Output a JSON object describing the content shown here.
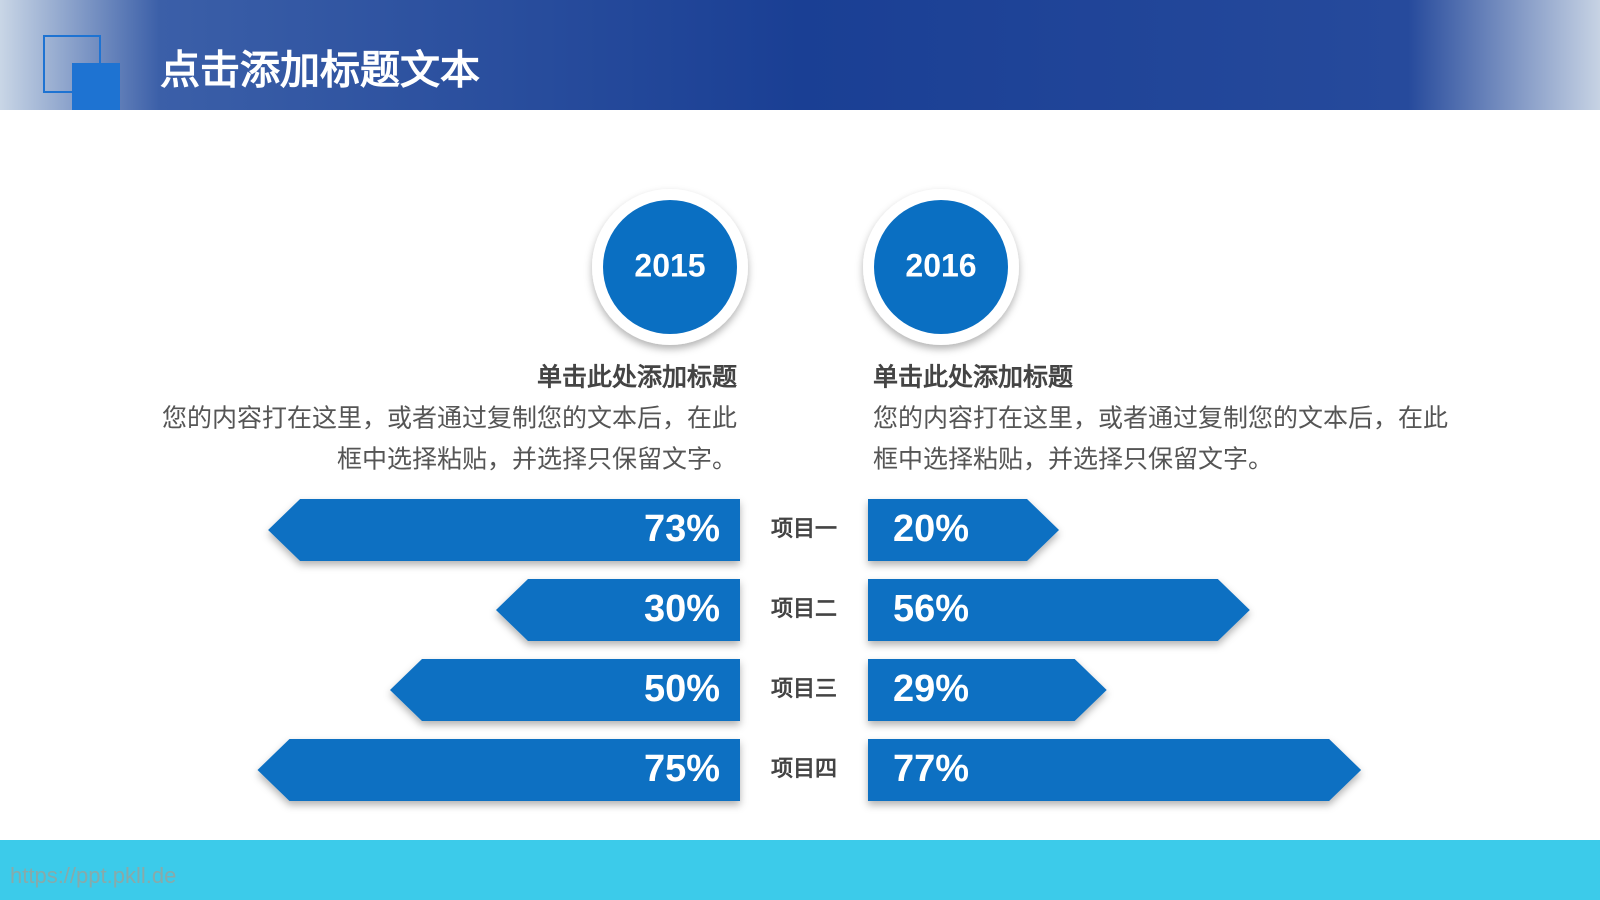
{
  "header": {
    "title": "点击添加标题文本"
  },
  "columns": [
    {
      "heading": "单击此处添加标题",
      "text_lines": [
        "您的内容打在这里，或者通过复制您的文本后，在此",
        "框中选择粘贴，并选择只保留文字。"
      ]
    },
    {
      "heading": "单击此处添加标题",
      "text_lines": [
        "您的内容打在这里，或者通过复制您的文本后，在此",
        "框中选择粘贴，并选择只保留文字。"
      ]
    }
  ],
  "chart_data": {
    "type": "bar",
    "categories": [
      "项目一",
      "项目二",
      "项目三",
      "项目四"
    ],
    "series": [
      {
        "name": "2015",
        "color": "#0a6fc2",
        "values": [
          73,
          30,
          50,
          75
        ],
        "value_labels": [
          "73%",
          "30%",
          "50%",
          "75%"
        ]
      },
      {
        "name": "2016",
        "color": "#0a6fc2",
        "values": [
          20,
          56,
          29,
          77
        ],
        "value_labels": [
          "20%",
          "56%",
          "29%",
          "77%"
        ]
      }
    ]
  },
  "footer": {
    "watermark": "https://ppt.pkll.de"
  }
}
